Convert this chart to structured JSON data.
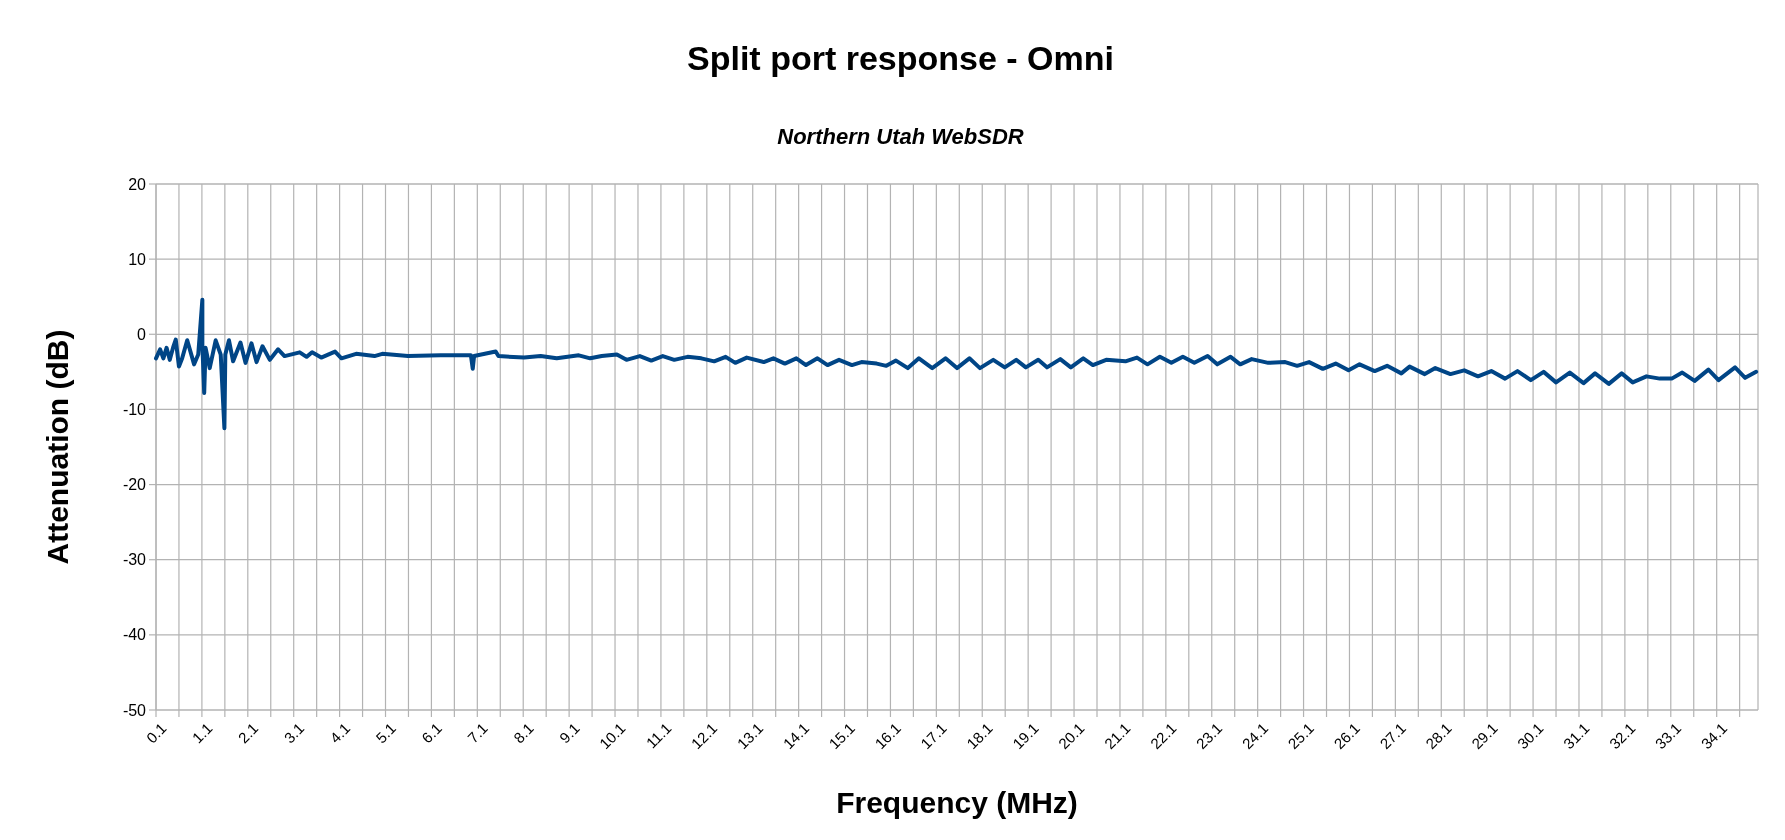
{
  "chart_data": {
    "type": "line",
    "title": "Split port response - Omni",
    "subtitle": "Northern Utah WebSDR",
    "xlabel": "Frequency (MHz)",
    "ylabel": "Attenuation (dB)",
    "xlim": [
      0.1,
      35.0
    ],
    "ylim": [
      -50,
      20
    ],
    "yticks": [
      -50,
      -40,
      -30,
      -20,
      -10,
      0,
      10,
      20
    ],
    "xticks": [
      0.1,
      {
        "value": 0.6,
        "label": null
      },
      1.1,
      {
        "value": 1.6,
        "label": null
      },
      2.1,
      {
        "value": 2.6,
        "label": null
      },
      3.1,
      {
        "value": 3.6,
        "label": null
      },
      4.1,
      {
        "value": 4.6,
        "label": null
      },
      5.1,
      {
        "value": 5.6,
        "label": null
      },
      6.1,
      {
        "value": 6.6,
        "label": null
      },
      7.1,
      {
        "value": 7.6,
        "label": null
      },
      8.1,
      {
        "value": 8.6,
        "label": null
      },
      9.1,
      {
        "value": 9.6,
        "label": null
      },
      10.1,
      {
        "value": 10.6,
        "label": null
      },
      11.1,
      {
        "value": 11.6,
        "label": null
      },
      12.1,
      {
        "value": 12.6,
        "label": null
      },
      13.1,
      {
        "value": 13.6,
        "label": null
      },
      14.1,
      {
        "value": 14.6,
        "label": null
      },
      15.1,
      {
        "value": 15.6,
        "label": null
      },
      16.1,
      {
        "value": 16.6,
        "label": null
      },
      17.1,
      {
        "value": 17.6,
        "label": null
      },
      18.1,
      {
        "value": 18.6,
        "label": null
      },
      19.1,
      {
        "value": 19.6,
        "label": null
      },
      20.1,
      {
        "value": 20.6,
        "label": null
      },
      21.1,
      {
        "value": 21.6,
        "label": null
      },
      22.1,
      {
        "value": 22.6,
        "label": null
      },
      23.1,
      {
        "value": 23.6,
        "label": null
      },
      24.1,
      {
        "value": 24.6,
        "label": null
      },
      25.1,
      {
        "value": 25.6,
        "label": null
      },
      26.1,
      {
        "value": 26.6,
        "label": null
      },
      27.1,
      {
        "value": 27.6,
        "label": null
      },
      28.1,
      {
        "value": 28.6,
        "label": null
      },
      29.1,
      {
        "value": 29.6,
        "label": null
      },
      30.1,
      {
        "value": 30.6,
        "label": null
      },
      31.1,
      {
        "value": 31.6,
        "label": null
      },
      32.1,
      {
        "value": 32.6,
        "label": null
      },
      33.1,
      {
        "value": 33.6,
        "label": null
      },
      34.1,
      {
        "value": 34.6,
        "label": null
      }
    ],
    "grid": true,
    "marker": "none",
    "line_style": "solid",
    "series": [
      {
        "color": "#004586",
        "x": [
          0.1,
          0.19,
          0.26,
          0.33,
          0.4,
          0.48,
          0.53,
          0.6,
          0.67,
          0.78,
          0.93,
          1.02,
          1.11,
          1.11,
          1.15,
          1.18,
          1.27,
          1.4,
          1.51,
          1.59,
          1.61,
          1.69,
          1.78,
          1.94,
          2.05,
          2.18,
          2.29,
          2.42,
          2.58,
          2.76,
          2.9,
          3.23,
          3.38,
          3.5,
          3.7,
          4.0,
          4.14,
          4.46,
          4.86,
          5.03,
          5.59,
          6.3,
          6.96,
          7.0,
          7.03,
          7.5,
          7.56,
          8.12,
          8.48,
          8.83,
          9.31,
          9.56,
          9.81,
          10.14,
          10.35,
          10.64,
          10.89,
          11.14,
          11.39,
          11.68,
          11.98,
          12.26,
          12.51,
          12.72,
          12.97,
          13.34,
          13.55,
          13.8,
          14.05,
          14.26,
          14.51,
          14.73,
          14.98,
          15.26,
          15.47,
          15.8,
          16.01,
          16.22,
          16.48,
          16.72,
          17.01,
          17.3,
          17.55,
          17.82,
          18.05,
          18.34,
          18.59,
          18.84,
          19.05,
          19.32,
          19.51,
          19.8,
          20.03,
          20.3,
          20.51,
          20.8,
          21.22,
          21.47,
          21.7,
          21.97,
          22.22,
          22.47,
          22.72,
          23.01,
          23.22,
          23.51,
          23.72,
          23.97,
          24.33,
          24.7,
          24.96,
          25.22,
          25.52,
          25.8,
          26.08,
          26.32,
          26.65,
          26.92,
          27.23,
          27.41,
          27.74,
          27.97,
          28.3,
          28.6,
          28.9,
          29.19,
          29.49,
          29.76,
          30.05,
          30.33,
          30.6,
          30.9,
          31.2,
          31.45,
          31.75,
          32.03,
          32.27,
          32.57,
          32.86,
          33.12,
          33.35,
          33.62,
          33.92,
          34.14,
          34.5,
          34.72,
          34.96
        ],
        "values": [
          -3.2,
          -2.0,
          -3.2,
          -1.8,
          -3.4,
          -1.6,
          -0.7,
          -4.3,
          -3.2,
          -0.8,
          -4.0,
          -2.7,
          4.6,
          -1.4,
          -7.8,
          -1.8,
          -4.5,
          -0.8,
          -2.7,
          -12.5,
          -2.7,
          -0.8,
          -3.6,
          -1.1,
          -3.8,
          -1.2,
          -3.7,
          -1.6,
          -3.4,
          -2.0,
          -2.9,
          -2.4,
          -3.0,
          -2.4,
          -3.1,
          -2.3,
          -3.2,
          -2.6,
          -2.9,
          -2.6,
          -2.9,
          -2.8,
          -2.8,
          -4.6,
          -2.9,
          -2.3,
          -2.9,
          -3.1,
          -2.9,
          -3.2,
          -2.8,
          -3.2,
          -2.9,
          -2.7,
          -3.4,
          -2.9,
          -3.5,
          -2.9,
          -3.4,
          -3.0,
          -3.2,
          -3.6,
          -3.0,
          -3.8,
          -3.1,
          -3.7,
          -3.2,
          -3.9,
          -3.2,
          -4.1,
          -3.2,
          -4.1,
          -3.4,
          -4.1,
          -3.7,
          -3.9,
          -4.2,
          -3.5,
          -4.5,
          -3.2,
          -4.5,
          -3.2,
          -4.5,
          -3.2,
          -4.5,
          -3.4,
          -4.4,
          -3.4,
          -4.4,
          -3.4,
          -4.4,
          -3.3,
          -4.4,
          -3.2,
          -4.1,
          -3.4,
          -3.6,
          -3.1,
          -4.0,
          -3.0,
          -3.8,
          -3.0,
          -3.8,
          -2.9,
          -4.0,
          -3.0,
          -4.0,
          -3.3,
          -3.8,
          -3.7,
          -4.2,
          -3.7,
          -4.6,
          -3.9,
          -4.8,
          -4.0,
          -4.9,
          -4.2,
          -5.2,
          -4.3,
          -5.3,
          -4.5,
          -5.3,
          -4.8,
          -5.6,
          -4.9,
          -5.9,
          -4.9,
          -6.1,
          -5.0,
          -6.4,
          -5.1,
          -6.5,
          -5.2,
          -6.6,
          -5.2,
          -6.4,
          -5.6,
          -5.9,
          -5.9,
          -5.1,
          -6.2,
          -4.7,
          -6.1,
          -4.4,
          -5.8,
          -5.0
        ]
      }
    ]
  }
}
